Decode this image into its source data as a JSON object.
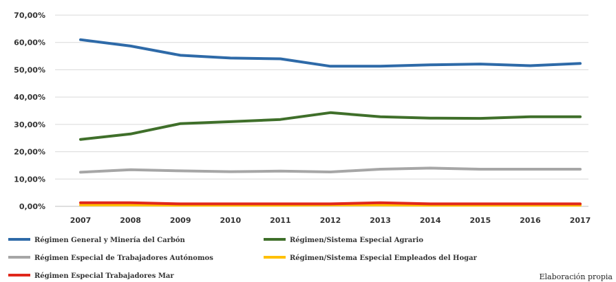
{
  "chart_data": {
    "type": "line",
    "title": "",
    "xlabel": "",
    "ylabel": "",
    "x": [
      "2007",
      "2008",
      "2009",
      "2010",
      "2011",
      "2012",
      "2013",
      "2014",
      "2015",
      "2016",
      "2017"
    ],
    "y_ticks": [
      "0,00%",
      "10,00%",
      "20,00%",
      "30,00%",
      "40,00%",
      "50,00%",
      "60,00%",
      "70,00%"
    ],
    "ylim": [
      0,
      70
    ],
    "grid": "horizontal",
    "legend_position": "bottom",
    "series": [
      {
        "name": "Régimen General y Minería del Carbón",
        "color": "#2e6aa8",
        "values": [
          61.0,
          58.7,
          55.3,
          54.3,
          54.0,
          51.3,
          51.3,
          51.8,
          52.1,
          51.5,
          52.3
        ]
      },
      {
        "name": "Régimen/Sistema Especial Agrario",
        "color": "#3f6f2a",
        "values": [
          24.5,
          26.5,
          30.3,
          31.0,
          31.8,
          34.3,
          32.8,
          32.3,
          32.2,
          32.8,
          32.8
        ]
      },
      {
        "name": "Régimen Especial de Trabajadores Autónomos",
        "color": "#a6a6a6",
        "values": [
          12.5,
          13.4,
          13.0,
          12.7,
          12.9,
          12.6,
          13.6,
          14.0,
          13.6,
          13.6,
          13.6
        ]
      },
      {
        "name": "Régimen/Sistema Especial Empleados del Hogar",
        "color": "#ffc000",
        "values": [
          0.5,
          0.5,
          0.4,
          0.4,
          0.4,
          0.5,
          0.5,
          0.4,
          0.4,
          0.4,
          0.4
        ]
      },
      {
        "name": "Régimen Especial Trabajadores Mar",
        "color": "#e0281b",
        "values": [
          1.3,
          1.3,
          0.9,
          0.9,
          0.9,
          0.9,
          1.3,
          0.9,
          0.9,
          0.9,
          0.9
        ]
      }
    ]
  },
  "source_note": "Elaboración propia"
}
